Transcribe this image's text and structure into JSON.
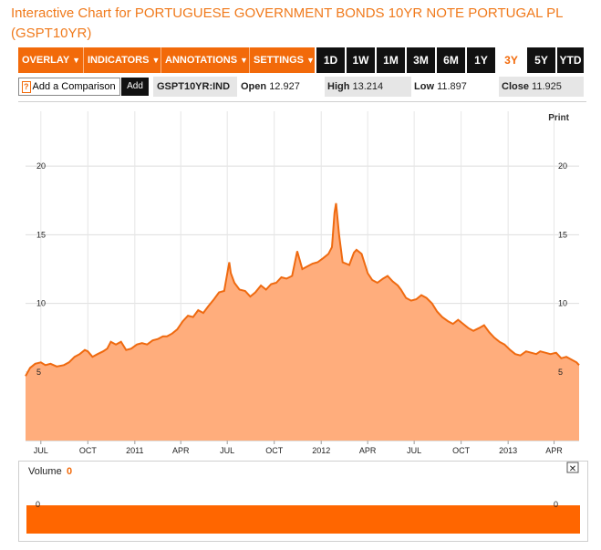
{
  "title": "Interactive Chart for PORTUGUESE GOVERNMENT BONDS 10YR NOTE PORTUGAL PL (GSPT10YR)",
  "toolbar": {
    "menus": [
      {
        "label": "OVERLAY"
      },
      {
        "label": "INDICATORS"
      },
      {
        "label": "ANNOTATIONS"
      },
      {
        "label": "SETTINGS"
      }
    ],
    "ranges": [
      {
        "label": "1D"
      },
      {
        "label": "1W"
      },
      {
        "label": "1M"
      },
      {
        "label": "3M"
      },
      {
        "label": "6M"
      },
      {
        "label": "1Y"
      },
      {
        "label": "3Y"
      },
      {
        "label": "5Y"
      },
      {
        "label": "YTD"
      }
    ],
    "active_range": "3Y",
    "caret": "▼"
  },
  "compare": {
    "icon": "help-icon",
    "icon_text": "?",
    "placeholder": "Add a Comparison",
    "add_label": "Add"
  },
  "quote": {
    "ticker": "GSPT10YR:IND",
    "open_label": "Open",
    "open": "12.927",
    "high_label": "High",
    "high": "13.214",
    "low_label": "Low",
    "low": "11.897",
    "close_label": "Close",
    "close": "11.925"
  },
  "print_label": "Print",
  "colors": {
    "accent": "#f26a0a",
    "area": "#ffad7c",
    "line": "#ef6a10",
    "volume": "#ff6600"
  },
  "chart_data": {
    "type": "area",
    "yticks": [
      5,
      10,
      15,
      20
    ],
    "ylim": [
      0,
      24
    ],
    "xlim": [
      "2010-06-01",
      "2013-05-20"
    ],
    "xticks": [
      {
        "label": "JUL",
        "date": "2010-07-01"
      },
      {
        "label": "OCT",
        "date": "2010-10-01"
      },
      {
        "label": "2011",
        "date": "2011-01-01"
      },
      {
        "label": "APR",
        "date": "2011-04-01"
      },
      {
        "label": "JUL",
        "date": "2011-07-01"
      },
      {
        "label": "OCT",
        "date": "2011-10-01"
      },
      {
        "label": "2012",
        "date": "2012-01-01"
      },
      {
        "label": "APR",
        "date": "2012-04-01"
      },
      {
        "label": "JUL",
        "date": "2012-07-01"
      },
      {
        "label": "OCT",
        "date": "2012-10-01"
      },
      {
        "label": "2013",
        "date": "2013-01-01"
      },
      {
        "label": "APR",
        "date": "2013-04-01"
      }
    ],
    "series": [
      {
        "points": [
          [
            "2010-06-01",
            4.7
          ],
          [
            "2010-06-10",
            5.3
          ],
          [
            "2010-06-20",
            5.6
          ],
          [
            "2010-07-01",
            5.7
          ],
          [
            "2010-07-10",
            5.5
          ],
          [
            "2010-07-20",
            5.6
          ],
          [
            "2010-08-01",
            5.4
          ],
          [
            "2010-08-15",
            5.5
          ],
          [
            "2010-08-25",
            5.7
          ],
          [
            "2010-09-05",
            6.1
          ],
          [
            "2010-09-15",
            6.3
          ],
          [
            "2010-09-25",
            6.6
          ],
          [
            "2010-10-01",
            6.5
          ],
          [
            "2010-10-10",
            6.1
          ],
          [
            "2010-10-20",
            6.3
          ],
          [
            "2010-10-31",
            6.5
          ],
          [
            "2010-11-08",
            6.7
          ],
          [
            "2010-11-15",
            7.2
          ],
          [
            "2010-11-25",
            7.0
          ],
          [
            "2010-12-05",
            7.2
          ],
          [
            "2010-12-15",
            6.6
          ],
          [
            "2010-12-25",
            6.7
          ],
          [
            "2011-01-05",
            7.0
          ],
          [
            "2011-01-15",
            7.1
          ],
          [
            "2011-01-25",
            7.0
          ],
          [
            "2011-02-05",
            7.3
          ],
          [
            "2011-02-15",
            7.4
          ],
          [
            "2011-02-25",
            7.6
          ],
          [
            "2011-03-05",
            7.6
          ],
          [
            "2011-03-15",
            7.8
          ],
          [
            "2011-03-25",
            8.1
          ],
          [
            "2011-04-05",
            8.7
          ],
          [
            "2011-04-15",
            9.1
          ],
          [
            "2011-04-25",
            9.0
          ],
          [
            "2011-05-05",
            9.5
          ],
          [
            "2011-05-15",
            9.3
          ],
          [
            "2011-05-25",
            9.8
          ],
          [
            "2011-06-05",
            10.3
          ],
          [
            "2011-06-15",
            10.8
          ],
          [
            "2011-06-25",
            10.9
          ],
          [
            "2011-07-05",
            13.0
          ],
          [
            "2011-07-08",
            12.2
          ],
          [
            "2011-07-15",
            11.5
          ],
          [
            "2011-07-25",
            11.0
          ],
          [
            "2011-08-05",
            10.9
          ],
          [
            "2011-08-15",
            10.5
          ],
          [
            "2011-08-25",
            10.8
          ],
          [
            "2011-09-05",
            11.3
          ],
          [
            "2011-09-15",
            11.0
          ],
          [
            "2011-09-25",
            11.4
          ],
          [
            "2011-10-05",
            11.5
          ],
          [
            "2011-10-15",
            11.9
          ],
          [
            "2011-10-25",
            11.8
          ],
          [
            "2011-11-05",
            12.0
          ],
          [
            "2011-11-15",
            13.8
          ],
          [
            "2011-11-25",
            12.5
          ],
          [
            "2011-12-05",
            12.7
          ],
          [
            "2011-12-15",
            12.9
          ],
          [
            "2011-12-25",
            13.0
          ],
          [
            "2012-01-05",
            13.3
          ],
          [
            "2012-01-15",
            13.6
          ],
          [
            "2012-01-22",
            14.1
          ],
          [
            "2012-01-27",
            16.6
          ],
          [
            "2012-01-30",
            17.3
          ],
          [
            "2012-02-05",
            15.0
          ],
          [
            "2012-02-12",
            13.0
          ],
          [
            "2012-02-25",
            12.8
          ],
          [
            "2012-03-05",
            13.7
          ],
          [
            "2012-03-10",
            13.9
          ],
          [
            "2012-03-20",
            13.6
          ],
          [
            "2012-04-01",
            12.2
          ],
          [
            "2012-04-10",
            11.7
          ],
          [
            "2012-04-20",
            11.5
          ],
          [
            "2012-05-01",
            11.8
          ],
          [
            "2012-05-10",
            12.0
          ],
          [
            "2012-05-20",
            11.6
          ],
          [
            "2012-05-30",
            11.3
          ],
          [
            "2012-06-05",
            11.0
          ],
          [
            "2012-06-15",
            10.4
          ],
          [
            "2012-06-25",
            10.2
          ],
          [
            "2012-07-05",
            10.3
          ],
          [
            "2012-07-15",
            10.6
          ],
          [
            "2012-07-25",
            10.4
          ],
          [
            "2012-08-05",
            10.0
          ],
          [
            "2012-08-15",
            9.4
          ],
          [
            "2012-08-25",
            9.0
          ],
          [
            "2012-09-05",
            8.7
          ],
          [
            "2012-09-15",
            8.5
          ],
          [
            "2012-09-25",
            8.8
          ],
          [
            "2012-10-05",
            8.5
          ],
          [
            "2012-10-15",
            8.2
          ],
          [
            "2012-10-25",
            8.0
          ],
          [
            "2012-11-05",
            8.2
          ],
          [
            "2012-11-15",
            8.4
          ],
          [
            "2012-11-25",
            7.9
          ],
          [
            "2012-12-05",
            7.5
          ],
          [
            "2012-12-15",
            7.2
          ],
          [
            "2012-12-25",
            7.0
          ],
          [
            "2013-01-05",
            6.6
          ],
          [
            "2013-01-15",
            6.3
          ],
          [
            "2013-01-25",
            6.2
          ],
          [
            "2013-02-05",
            6.5
          ],
          [
            "2013-02-15",
            6.4
          ],
          [
            "2013-02-25",
            6.3
          ],
          [
            "2013-03-05",
            6.5
          ],
          [
            "2013-03-15",
            6.4
          ],
          [
            "2013-03-25",
            6.3
          ],
          [
            "2013-04-05",
            6.4
          ],
          [
            "2013-04-15",
            6.0
          ],
          [
            "2013-04-25",
            6.1
          ],
          [
            "2013-05-05",
            5.9
          ],
          [
            "2013-05-15",
            5.7
          ],
          [
            "2013-05-20",
            5.5
          ]
        ]
      }
    ],
    "grid": true
  },
  "volume": {
    "label": "Volume",
    "value": "0",
    "axis_value": "0",
    "close_symbol": "✕"
  }
}
